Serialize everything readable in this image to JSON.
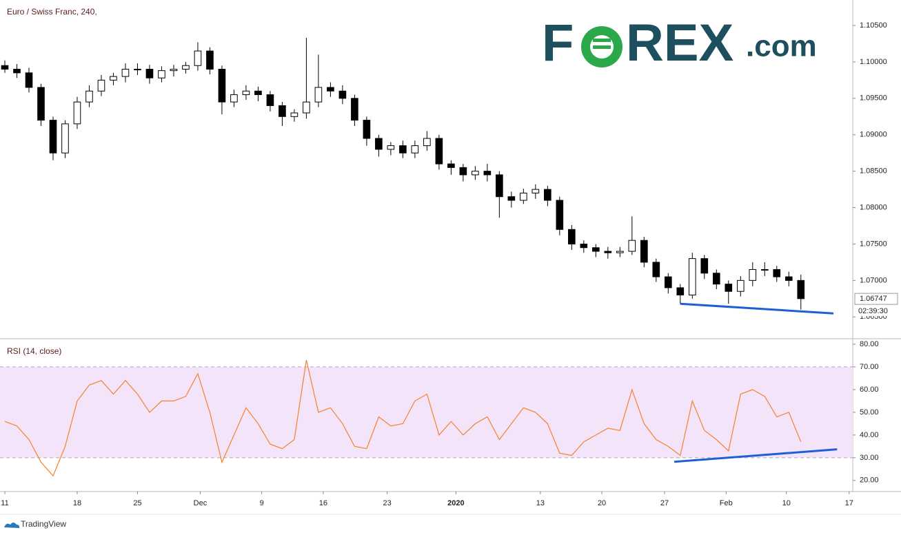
{
  "chart_data": [
    {
      "type": "candlestick",
      "title": "Euro / Swiss Franc, 240,",
      "x": [
        0,
        1,
        2,
        3,
        4,
        5,
        6,
        7,
        8,
        9,
        10,
        11,
        12,
        13,
        14,
        15,
        16,
        17,
        18,
        19,
        20,
        21,
        22,
        23,
        24,
        25,
        26,
        27,
        28,
        29,
        30,
        31,
        32,
        33,
        34,
        35,
        36,
        37,
        38,
        39,
        40,
        41,
        42,
        43,
        44,
        45,
        46,
        47,
        48,
        49,
        50,
        51,
        52,
        53,
        54,
        55,
        56,
        57,
        58,
        59,
        60,
        61,
        62,
        63,
        64,
        65,
        66
      ],
      "open": [
        1.0995,
        1.099,
        1.0985,
        1.0965,
        1.092,
        1.0875,
        1.0915,
        1.0945,
        1.096,
        1.0975,
        1.098,
        1.099,
        1.099,
        1.0978,
        1.0988,
        1.099,
        1.0995,
        1.1015,
        1.099,
        1.0945,
        1.0955,
        1.096,
        1.0955,
        1.094,
        1.0925,
        1.093,
        1.0945,
        1.0965,
        1.096,
        1.095,
        1.092,
        1.0895,
        1.088,
        1.0885,
        1.0875,
        1.0885,
        1.0895,
        1.086,
        1.0855,
        1.0845,
        1.085,
        1.0845,
        1.0815,
        1.081,
        1.082,
        1.0825,
        1.081,
        1.077,
        1.075,
        1.0745,
        1.074,
        1.0738,
        1.074,
        1.0755,
        1.0725,
        1.0705,
        1.069,
        1.068,
        1.073,
        1.071,
        1.0695,
        1.0685,
        1.07,
        1.0715,
        1.0715,
        1.0705,
        1.07
      ],
      "high": [
        1.1002,
        1.0997,
        1.0992,
        1.097,
        1.0925,
        1.092,
        1.0952,
        1.0968,
        1.0982,
        1.0985,
        1.0998,
        1.0998,
        1.0996,
        1.0994,
        1.0996,
        1.1,
        1.1027,
        1.102,
        1.0995,
        1.0962,
        1.0968,
        1.0966,
        1.096,
        1.0945,
        1.0935,
        1.1033,
        1.101,
        1.0972,
        1.0968,
        1.0955,
        1.0925,
        1.09,
        1.089,
        1.0892,
        1.0892,
        1.0905,
        1.09,
        1.0865,
        1.086,
        1.0857,
        1.086,
        1.085,
        1.0822,
        1.0826,
        1.0832,
        1.083,
        1.0815,
        1.0776,
        1.0755,
        1.075,
        1.0746,
        1.0746,
        1.0788,
        1.076,
        1.073,
        1.071,
        1.0695,
        1.0738,
        1.0735,
        1.0715,
        1.07,
        1.0706,
        1.0725,
        1.0725,
        1.072,
        1.0712,
        1.0708
      ],
      "low": [
        1.0985,
        1.0978,
        1.0958,
        1.0912,
        1.0865,
        1.0868,
        1.0908,
        1.0938,
        1.0953,
        1.0968,
        1.0972,
        1.0982,
        1.097,
        1.0972,
        1.098,
        1.0984,
        1.0988,
        1.0983,
        1.0928,
        1.0938,
        1.0948,
        1.0946,
        1.0932,
        1.0912,
        1.0918,
        1.0922,
        1.0938,
        1.0952,
        1.0942,
        1.0912,
        1.0885,
        1.087,
        1.0872,
        1.0868,
        1.0868,
        1.0878,
        1.0852,
        1.0845,
        1.0836,
        1.0838,
        1.0836,
        1.0786,
        1.08,
        1.0805,
        1.0812,
        1.0802,
        1.0762,
        1.0742,
        1.0738,
        1.0732,
        1.073,
        1.0732,
        1.0735,
        1.0718,
        1.0698,
        1.0682,
        1.0668,
        1.0675,
        1.0702,
        1.0688,
        1.0668,
        1.0678,
        1.0692,
        1.0706,
        1.0698,
        1.0692,
        1.066
      ],
      "close": [
        1.099,
        1.0985,
        1.0965,
        1.092,
        1.0875,
        1.0915,
        1.0945,
        1.096,
        1.0975,
        1.098,
        1.099,
        1.099,
        1.0978,
        1.0988,
        1.099,
        1.0995,
        1.1015,
        1.099,
        1.0945,
        1.0955,
        1.096,
        1.0955,
        1.094,
        1.0925,
        1.093,
        1.0945,
        1.0965,
        1.096,
        1.095,
        1.092,
        1.0895,
        1.088,
        1.0885,
        1.0875,
        1.0885,
        1.0895,
        1.086,
        1.0855,
        1.0845,
        1.085,
        1.0845,
        1.0815,
        1.081,
        1.082,
        1.0825,
        1.081,
        1.077,
        1.075,
        1.0745,
        1.074,
        1.0738,
        1.074,
        1.0755,
        1.0725,
        1.0705,
        1.069,
        1.068,
        1.073,
        1.071,
        1.0695,
        1.0685,
        1.07,
        1.0715,
        1.0715,
        1.0705,
        1.07,
        1.0675
      ],
      "up_color": "#ffffff",
      "down_color": "#000000",
      "wick_color": "#000000",
      "xlim": [
        -0.4,
        70.3
      ],
      "ylim": [
        1.062,
        1.1085
      ],
      "yticks": [
        {
          "value": 1.105,
          "label": "1.10500"
        },
        {
          "value": 1.1,
          "label": "1.10000"
        },
        {
          "value": 1.095,
          "label": "1.09500"
        },
        {
          "value": 1.09,
          "label": "1.09000"
        },
        {
          "value": 1.085,
          "label": "1.08500"
        },
        {
          "value": 1.08,
          "label": "1.08000"
        },
        {
          "value": 1.075,
          "label": "1.07500"
        },
        {
          "value": 1.07,
          "label": "1.07000"
        },
        {
          "value": 1.065,
          "label": "1.06500"
        }
      ],
      "last_price": {
        "value": 1.06747,
        "label": "1.06747"
      },
      "countdown": "02:39:30",
      "trendline": {
        "x": [
          56,
          68.7
        ],
        "y": [
          1.0668,
          1.06547
        ],
        "color": "#1f5fd6"
      }
    },
    {
      "type": "line",
      "title": "RSI (14, close)",
      "color": "#f5812b",
      "values": [
        46,
        44,
        38,
        28,
        22,
        35,
        55,
        62,
        64,
        58,
        64,
        58,
        50,
        55,
        55,
        57,
        67,
        50,
        28,
        40,
        52,
        45,
        36,
        34,
        38,
        73,
        50,
        52,
        45,
        35,
        34,
        48,
        44,
        45,
        55,
        58,
        40,
        46,
        40,
        45,
        48,
        38,
        45,
        52,
        50,
        45,
        32,
        31,
        37,
        40,
        43,
        42,
        60,
        45,
        38,
        35,
        31,
        55,
        42,
        38,
        33,
        58,
        60,
        57,
        48,
        50,
        37
      ],
      "xlim": [
        -0.4,
        70.3
      ],
      "ylim": [
        15.4,
        82.1
      ],
      "yticks": [
        {
          "value": 80,
          "label": "80.00"
        },
        {
          "value": 70,
          "label": "70.00"
        },
        {
          "value": 60,
          "label": "60.00"
        },
        {
          "value": 50,
          "label": "50.00"
        },
        {
          "value": 40,
          "label": "40.00"
        },
        {
          "value": 30,
          "label": "30.00"
        },
        {
          "value": 20,
          "label": "20.00"
        }
      ],
      "band": [
        30,
        70
      ],
      "band_color": "#f3e4fa",
      "xticks": [
        {
          "value": 0,
          "label": "11"
        },
        {
          "value": 6,
          "label": "18"
        },
        {
          "value": 11,
          "label": "25"
        },
        {
          "value": 16.2,
          "label": "Dec"
        },
        {
          "value": 21.3,
          "label": "9"
        },
        {
          "value": 26.4,
          "label": "16"
        },
        {
          "value": 31.7,
          "label": "23"
        },
        {
          "value": 37.4,
          "label": "2020"
        },
        {
          "value": 44.4,
          "label": "13"
        },
        {
          "value": 49.5,
          "label": "20"
        },
        {
          "value": 54.7,
          "label": "27"
        },
        {
          "value": 59.8,
          "label": "Feb"
        },
        {
          "value": 64.8,
          "label": "10"
        },
        {
          "value": 70,
          "label": "17"
        }
      ],
      "trendline": {
        "x": [
          55.5,
          69
        ],
        "y": [
          28.2,
          33.7
        ],
        "color": "#1f5fd6"
      }
    }
  ],
  "logo": {
    "left": "F",
    "right": "REX",
    "suffix": ".com"
  },
  "footer": "TradingView"
}
